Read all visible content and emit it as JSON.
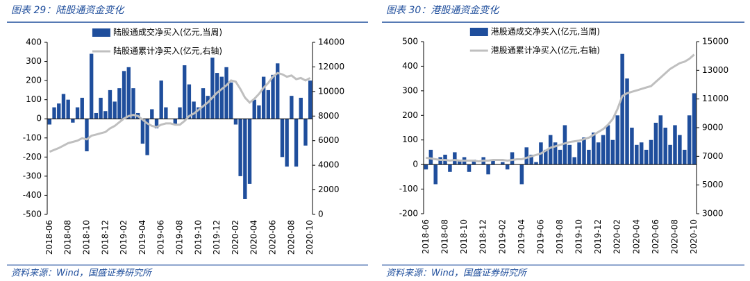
{
  "chart_data": [
    {
      "type": "combo",
      "title": "图表 29：陆股通资金变化",
      "source": "资料来源：Wind，国盛证券研究所",
      "categories": [
        "2018-06",
        null,
        null,
        null,
        "2018-08",
        null,
        null,
        null,
        "2018-10",
        null,
        null,
        null,
        "2018-12",
        null,
        null,
        null,
        "2019-02",
        null,
        null,
        null,
        "2019-04",
        null,
        null,
        null,
        "2019-06",
        null,
        null,
        null,
        "2019-08",
        null,
        null,
        null,
        "2019-10",
        null,
        null,
        null,
        "2019-12",
        null,
        null,
        null,
        "2020-02",
        null,
        null,
        null,
        "2020-04",
        null,
        null,
        null,
        "2020-06",
        null,
        null,
        null,
        "2020-08",
        null,
        null,
        null,
        "2020-10"
      ],
      "series": [
        {
          "name": "陆股通成交净买入(亿元,当周)",
          "kind": "bar",
          "color": "#1f4e9c",
          "values": [
            -30,
            60,
            80,
            130,
            100,
            -20,
            60,
            110,
            -170,
            340,
            30,
            110,
            40,
            150,
            90,
            160,
            250,
            270,
            160,
            30,
            -130,
            -190,
            50,
            -50,
            200,
            60,
            0,
            -30,
            60,
            280,
            180,
            90,
            60,
            160,
            120,
            320,
            240,
            220,
            270,
            190,
            -30,
            -300,
            -420,
            -340,
            100,
            70,
            220,
            150,
            230,
            290,
            -200,
            -250,
            120,
            -250,
            110,
            -140,
            200
          ]
        },
        {
          "name": "陆股通累计净买入(亿元,右轴)",
          "kind": "line",
          "axis": "y2",
          "color": "#bfbfbf",
          "values": [
            5100,
            5250,
            5400,
            5600,
            5800,
            5900,
            6000,
            6200,
            6100,
            6400,
            6500,
            6600,
            6700,
            7000,
            7200,
            7500,
            7800,
            8000,
            8100,
            8000,
            7700,
            7400,
            7200,
            7100,
            7300,
            7400,
            7400,
            7300,
            7300,
            7600,
            8000,
            8200,
            8500,
            8800,
            9100,
            9500,
            9900,
            10200,
            10500,
            10900,
            10800,
            10200,
            9500,
            9100,
            9400,
            9800,
            10300,
            10700,
            11200,
            11500,
            11400,
            11200,
            11300,
            11000,
            11100,
            10900,
            11100
          ]
        }
      ],
      "ylim": [
        -500,
        400
      ],
      "yticks": [
        -500,
        -400,
        -300,
        -200,
        -100,
        0,
        100,
        200,
        300,
        400
      ],
      "y2lim": [
        0,
        14000
      ],
      "y2ticks": [
        0,
        2000,
        4000,
        6000,
        8000,
        10000,
        12000,
        14000
      ]
    },
    {
      "type": "combo",
      "title": "图表 30：港股通资金变化",
      "source": "资料来源：Wind，国盛证券研究所",
      "categories": [
        "2018-06",
        null,
        null,
        null,
        "2018-08",
        null,
        null,
        null,
        "2018-10",
        null,
        null,
        null,
        "2018-12",
        null,
        null,
        null,
        "2019-02",
        null,
        null,
        null,
        "2019-04",
        null,
        null,
        null,
        "2019-06",
        null,
        null,
        null,
        "2019-08",
        null,
        null,
        null,
        "2019-10",
        null,
        null,
        null,
        "2019-12",
        null,
        null,
        null,
        "2020-02",
        null,
        null,
        null,
        "2020-04",
        null,
        null,
        null,
        "2020-06",
        null,
        null,
        null,
        "2020-08",
        null,
        null,
        null,
        "2020-10"
      ],
      "series": [
        {
          "name": "港股通成交净买入(亿元,当周)",
          "kind": "bar",
          "color": "#1f4e9c",
          "values": [
            -20,
            60,
            -80,
            30,
            40,
            -30,
            50,
            20,
            30,
            -30,
            20,
            0,
            30,
            -40,
            20,
            0,
            10,
            -20,
            50,
            0,
            -80,
            70,
            40,
            10,
            90,
            60,
            120,
            90,
            60,
            160,
            80,
            30,
            90,
            110,
            60,
            130,
            90,
            120,
            160,
            100,
            200,
            450,
            350,
            150,
            80,
            90,
            60,
            100,
            170,
            200,
            150,
            80,
            160,
            120,
            60,
            200,
            290
          ]
        },
        {
          "name": "港股通累计净买入(亿元,右轴)",
          "kind": "line",
          "axis": "y2",
          "color": "#bfbfbf",
          "values": [
            6900,
            6850,
            6800,
            6750,
            6750,
            6700,
            6750,
            6700,
            6700,
            6700,
            6700,
            6650,
            6700,
            6700,
            6750,
            6750,
            6750,
            6700,
            6750,
            6800,
            6800,
            6900,
            7000,
            7100,
            7200,
            7400,
            7600,
            7700,
            7800,
            7900,
            8000,
            8050,
            8100,
            8200,
            8300,
            8500,
            8700,
            8900,
            9200,
            9600,
            10300,
            11200,
            11400,
            11500,
            11600,
            11700,
            11800,
            11900,
            12200,
            12500,
            12800,
            13100,
            13300,
            13500,
            13600,
            13800,
            14100
          ]
        }
      ],
      "ylim": [
        -200,
        500
      ],
      "yticks": [
        -200,
        -100,
        0,
        100,
        200,
        300,
        400,
        500
      ],
      "y2lim": [
        3000,
        15000
      ],
      "y2ticks": [
        3000,
        5000,
        7000,
        9000,
        11000,
        13000,
        15000
      ]
    }
  ]
}
